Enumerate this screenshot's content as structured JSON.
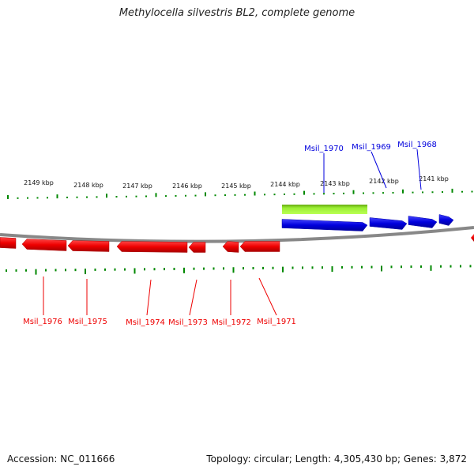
{
  "title": "Methylocella silvestris BL2, complete genome",
  "footer": {
    "accession": "Accession: NC_011666",
    "summary": "Topology: circular; Length: 4,305,430 bp; Genes: 3,872"
  },
  "colors": {
    "forward_gene": "#0000dd",
    "reverse_gene": "#ee0000",
    "feature_bar": "#99ee33",
    "axis": "#888888",
    "tick": "#008800"
  },
  "ticks": [
    {
      "label": "2149 kbp"
    },
    {
      "label": "2148 kbp"
    },
    {
      "label": "2147 kbp"
    },
    {
      "label": "2146 kbp"
    },
    {
      "label": "2145 kbp"
    },
    {
      "label": "2144 kbp"
    },
    {
      "label": "2143 kbp"
    },
    {
      "label": "2142 kbp"
    },
    {
      "label": "2141 kbp"
    }
  ],
  "forward_genes": [
    {
      "name": "Msil_1970"
    },
    {
      "name": "Msil_1969"
    },
    {
      "name": "Msil_1968"
    }
  ],
  "reverse_genes": [
    {
      "name": "Msil_1976"
    },
    {
      "name": "Msil_1975"
    },
    {
      "name": "Msil_1974"
    },
    {
      "name": "Msil_1973"
    },
    {
      "name": "Msil_1972"
    },
    {
      "name": "Msil_1971"
    }
  ]
}
